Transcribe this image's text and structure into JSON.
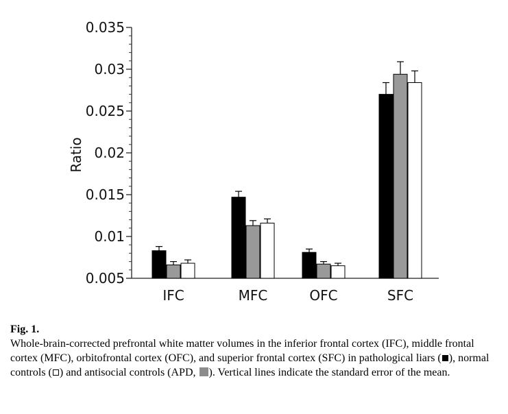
{
  "chart_data": {
    "type": "bar",
    "ylabel": "Ratio",
    "xlabel": "",
    "ylim": [
      0.005,
      0.035
    ],
    "yticks": [
      "0.005",
      "0.01",
      "0.015",
      "0.02",
      "0.025",
      "0.03",
      "0.035"
    ],
    "categories": [
      "IFC",
      "MFC",
      "OFC",
      "SFC"
    ],
    "series": [
      {
        "color": "#000000",
        "values": [
          0.0083,
          0.0147,
          0.0081,
          0.027
        ],
        "errors": [
          0.0005,
          0.0007,
          0.0004,
          0.0014
        ]
      },
      {
        "color": "#999999",
        "values": [
          0.0066,
          0.0113,
          0.0067,
          0.0294
        ],
        "errors": [
          0.0004,
          0.0006,
          0.0003,
          0.0015
        ]
      },
      {
        "color": "#ffffff",
        "values": [
          0.0068,
          0.0116,
          0.0065,
          0.0284
        ],
        "errors": [
          0.0004,
          0.0005,
          0.0003,
          0.0014
        ]
      }
    ],
    "legend": "none",
    "grid": false
  },
  "caption": {
    "label": "Fig. 1.",
    "p1": "Whole-brain-corrected prefrontal white matter volumes in the inferior frontal cortex (IFC), middle frontal cortex (MFC), orbitofrontal cortex (OFC), and superior frontal cortex (SFC) in pathological liars (",
    "p2": "), normal controls (",
    "p3": ") and antisocial controls (APD, ",
    "p4": "). Vertical lines indicate the standard error of the mean."
  }
}
